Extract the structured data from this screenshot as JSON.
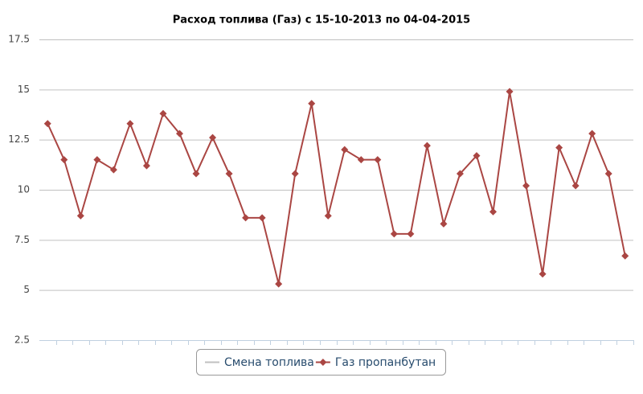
{
  "chart_data": {
    "type": "line",
    "title": "Расход топлива (Газ) с 15-10-2013 по 04-04-2015",
    "categories": [
      null,
      null,
      null,
      null,
      null,
      null,
      null,
      null,
      null,
      null,
      null,
      null,
      null,
      null,
      null,
      null,
      null,
      null,
      null,
      null,
      null,
      null,
      null,
      null,
      null,
      null,
      null,
      null,
      null,
      null,
      null,
      null,
      null,
      null,
      null,
      null
    ],
    "series": [
      {
        "name": "Смена топлива",
        "color": "#c0c0c0",
        "values": [
          null,
          null,
          null,
          null,
          null,
          null,
          null,
          null,
          null,
          null,
          null,
          null,
          null,
          null,
          null,
          null,
          null,
          null,
          null,
          null,
          null,
          null,
          null,
          null,
          null,
          null,
          null,
          null,
          null,
          null,
          null,
          null,
          null,
          null,
          null,
          null
        ]
      },
      {
        "name": "Газ пропанбутан",
        "color": "#aa4643",
        "values": [
          13.3,
          11.5,
          8.7,
          11.5,
          11.0,
          13.3,
          11.2,
          13.8,
          12.8,
          10.8,
          12.6,
          10.8,
          8.6,
          8.6,
          5.3,
          10.8,
          14.3,
          8.7,
          12.0,
          11.5,
          11.5,
          7.8,
          7.8,
          12.2,
          8.3,
          10.8,
          11.7,
          8.9,
          14.9,
          10.2,
          5.8,
          12.1,
          10.2,
          12.8,
          10.8,
          6.7
        ]
      }
    ],
    "ylim": [
      2.5,
      17.5
    ],
    "yticks": [
      2.5,
      5,
      7.5,
      10,
      12.5,
      15,
      17.5
    ],
    "grid": true
  }
}
